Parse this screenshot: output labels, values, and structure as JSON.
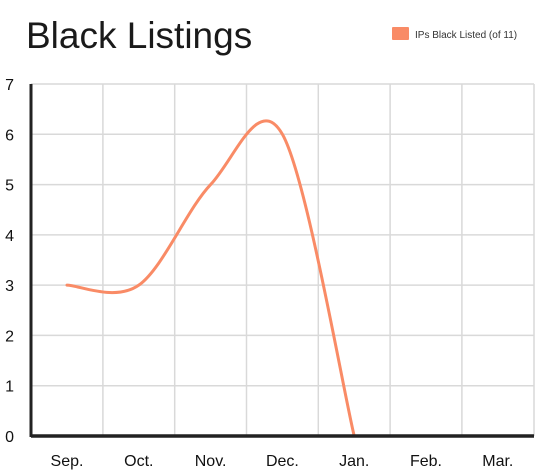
{
  "chart_data": {
    "type": "line",
    "title": "Black Listings",
    "categories": [
      "Sep.",
      "Oct.",
      "Nov.",
      "Dec.",
      "Jan.",
      "Feb.",
      "Mar."
    ],
    "series": [
      {
        "name": "IPs Black Listed (of 11)",
        "values": [
          3,
          3,
          5,
          6,
          0,
          null,
          0
        ],
        "color": "#f98b66"
      }
    ],
    "yticks": [
      0,
      1,
      2,
      3,
      4,
      5,
      6,
      7
    ],
    "ylim": [
      0,
      7
    ],
    "grid": true,
    "legend_position": "top-right",
    "line_style": "smooth"
  }
}
